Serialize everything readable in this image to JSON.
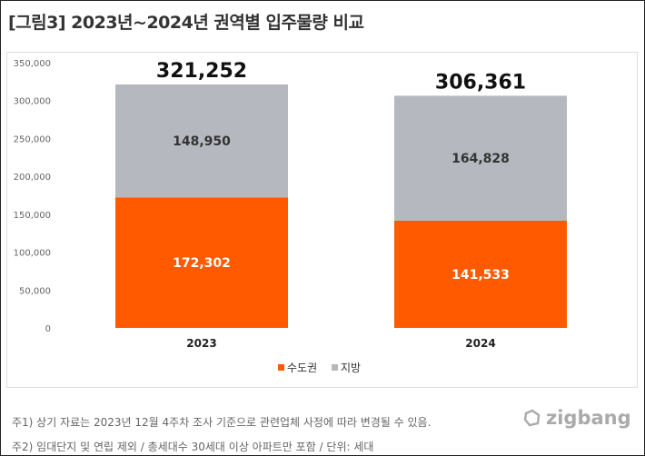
{
  "title": "[그림3]  2023년~2024년 권역별 입주물량 비교",
  "chart_data": {
    "type": "bar",
    "stacked": true,
    "categories": [
      "2023",
      "2024"
    ],
    "series": [
      {
        "name": "수도권",
        "values": [
          172302,
          141533
        ],
        "color": "#ff5a00",
        "labels": [
          "172,302",
          "141,533"
        ]
      },
      {
        "name": "지방",
        "values": [
          148950,
          164828
        ],
        "color": "#b5b8bf",
        "labels": [
          "148,950",
          "164,828"
        ]
      }
    ],
    "totals": [
      321252,
      306361
    ],
    "total_labels": [
      "321,252",
      "306,361"
    ],
    "ylim": [
      0,
      350000
    ],
    "yticks": [
      0,
      50000,
      100000,
      150000,
      200000,
      250000,
      300000,
      350000
    ],
    "ytick_labels": [
      "0",
      "50,000",
      "100,000",
      "150,000",
      "200,000",
      "250,000",
      "300,000",
      "350,000"
    ],
    "legend_position": "bottom",
    "grid": false
  },
  "notes": [
    "주1) 상기 자료는 2023년 12월 4주차 조사 기준으로 관련업체 사정에 따라 변경될 수 있음.",
    "주2) 임대단지 및 연립 제외 / 총세대수 30세대 이상 아파트만 포함 / 단위: 세대"
  ],
  "logo": "zigbang"
}
